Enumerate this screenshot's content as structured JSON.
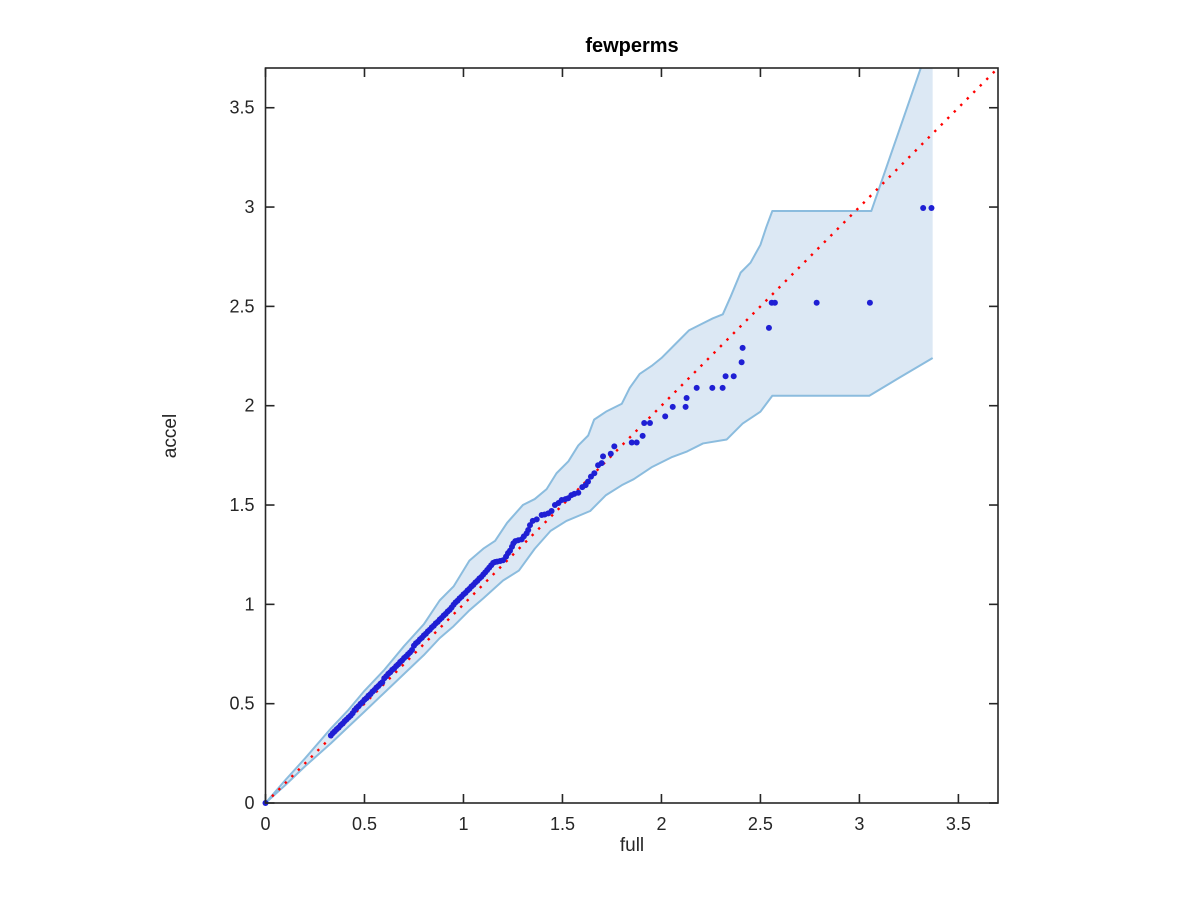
{
  "chart_data": {
    "type": "scatter",
    "title": "fewperms",
    "xlabel": "full",
    "ylabel": "accel",
    "xlim": [
      0,
      3.7
    ],
    "ylim": [
      0,
      3.7
    ],
    "grid": false,
    "legend": "none",
    "x_ticks": [
      0,
      0.5,
      1,
      1.5,
      2,
      2.5,
      3,
      3.5
    ],
    "x_tick_labels": [
      "0",
      "0.5",
      "1",
      "1.5",
      "2",
      "2.5",
      "3",
      "3.5"
    ],
    "y_ticks": [
      0,
      0.5,
      1,
      1.5,
      2,
      2.5,
      3,
      3.5
    ],
    "y_tick_labels": [
      "0",
      "0.5",
      "1",
      "1.5",
      "2",
      "2.5",
      "3",
      "3.5"
    ],
    "colors": {
      "band_fill": "#dce8f4",
      "band_edge": "#8bbcde",
      "point": "#1f1fd4",
      "reference_line": "#ff0000",
      "axis": "#262626"
    },
    "reference_line": {
      "style": "dotted",
      "from": [
        0,
        0
      ],
      "to": [
        3.7,
        3.7
      ]
    },
    "band": {
      "upper": [
        [
          0,
          0
        ],
        [
          0.1,
          0.115
        ],
        [
          0.2,
          0.225
        ],
        [
          0.33,
          0.375
        ],
        [
          0.42,
          0.47
        ],
        [
          0.5,
          0.565
        ],
        [
          0.6,
          0.67
        ],
        [
          0.7,
          0.79
        ],
        [
          0.8,
          0.9
        ],
        [
          0.88,
          1.02
        ],
        [
          0.95,
          1.09
        ],
        [
          1.03,
          1.22
        ],
        [
          1.1,
          1.28
        ],
        [
          1.16,
          1.32
        ],
        [
          1.22,
          1.41
        ],
        [
          1.3,
          1.5
        ],
        [
          1.36,
          1.53
        ],
        [
          1.42,
          1.58
        ],
        [
          1.47,
          1.66
        ],
        [
          1.53,
          1.72
        ],
        [
          1.58,
          1.8
        ],
        [
          1.63,
          1.85
        ],
        [
          1.66,
          1.93
        ],
        [
          1.72,
          1.97
        ],
        [
          1.8,
          2.01
        ],
        [
          1.84,
          2.09
        ],
        [
          1.89,
          2.16
        ],
        [
          1.95,
          2.2
        ],
        [
          2.0,
          2.24
        ],
        [
          2.07,
          2.31
        ],
        [
          2.14,
          2.38
        ],
        [
          2.2,
          2.41
        ],
        [
          2.26,
          2.44
        ],
        [
          2.31,
          2.46
        ],
        [
          2.35,
          2.55
        ],
        [
          2.4,
          2.67
        ],
        [
          2.45,
          2.72
        ],
        [
          2.5,
          2.81
        ],
        [
          2.53,
          2.9
        ],
        [
          2.56,
          2.98
        ],
        [
          3.06,
          2.98
        ],
        [
          3.31,
          3.7
        ],
        [
          3.37,
          3.7
        ]
      ],
      "lower": [
        [
          0,
          0
        ],
        [
          0.1,
          0.09
        ],
        [
          0.2,
          0.185
        ],
        [
          0.33,
          0.3
        ],
        [
          0.42,
          0.385
        ],
        [
          0.5,
          0.46
        ],
        [
          0.6,
          0.555
        ],
        [
          0.7,
          0.65
        ],
        [
          0.8,
          0.745
        ],
        [
          0.88,
          0.83
        ],
        [
          0.95,
          0.89
        ],
        [
          1.03,
          0.97
        ],
        [
          1.1,
          1.03
        ],
        [
          1.2,
          1.12
        ],
        [
          1.28,
          1.17
        ],
        [
          1.36,
          1.28
        ],
        [
          1.44,
          1.37
        ],
        [
          1.52,
          1.42
        ],
        [
          1.64,
          1.47
        ],
        [
          1.72,
          1.55
        ],
        [
          1.8,
          1.6
        ],
        [
          1.86,
          1.63
        ],
        [
          1.95,
          1.69
        ],
        [
          2.05,
          1.74
        ],
        [
          2.13,
          1.77
        ],
        [
          2.21,
          1.81
        ],
        [
          2.33,
          1.83
        ],
        [
          2.41,
          1.91
        ],
        [
          2.5,
          1.97
        ],
        [
          2.56,
          2.05
        ],
        [
          3.05,
          2.05
        ],
        [
          3.2,
          2.14
        ],
        [
          3.37,
          2.24
        ]
      ]
    },
    "points": [
      [
        0,
        0
      ],
      [
        0.33,
        0.34
      ],
      [
        0.34,
        0.352
      ],
      [
        0.35,
        0.361
      ],
      [
        0.36,
        0.372
      ],
      [
        0.37,
        0.38
      ],
      [
        0.38,
        0.392
      ],
      [
        0.39,
        0.4
      ],
      [
        0.4,
        0.412
      ],
      [
        0.41,
        0.421
      ],
      [
        0.42,
        0.431
      ],
      [
        0.43,
        0.44
      ],
      [
        0.44,
        0.452
      ],
      [
        0.45,
        0.467
      ],
      [
        0.46,
        0.478
      ],
      [
        0.47,
        0.487
      ],
      [
        0.48,
        0.499
      ],
      [
        0.49,
        0.508
      ],
      [
        0.5,
        0.52
      ],
      [
        0.51,
        0.528
      ],
      [
        0.52,
        0.54
      ],
      [
        0.53,
        0.548
      ],
      [
        0.54,
        0.56
      ],
      [
        0.55,
        0.569
      ],
      [
        0.56,
        0.581
      ],
      [
        0.57,
        0.589
      ],
      [
        0.58,
        0.6
      ],
      [
        0.59,
        0.608
      ],
      [
        0.6,
        0.628
      ],
      [
        0.61,
        0.638
      ],
      [
        0.62,
        0.65
      ],
      [
        0.63,
        0.658
      ],
      [
        0.64,
        0.67
      ],
      [
        0.65,
        0.678
      ],
      [
        0.66,
        0.689
      ],
      [
        0.67,
        0.698
      ],
      [
        0.68,
        0.71
      ],
      [
        0.69,
        0.718
      ],
      [
        0.7,
        0.73
      ],
      [
        0.71,
        0.738
      ],
      [
        0.72,
        0.749
      ],
      [
        0.73,
        0.758
      ],
      [
        0.74,
        0.77
      ],
      [
        0.75,
        0.792
      ],
      [
        0.76,
        0.804
      ],
      [
        0.77,
        0.812
      ],
      [
        0.78,
        0.824
      ],
      [
        0.79,
        0.832
      ],
      [
        0.8,
        0.844
      ],
      [
        0.81,
        0.852
      ],
      [
        0.82,
        0.864
      ],
      [
        0.83,
        0.872
      ],
      [
        0.84,
        0.884
      ],
      [
        0.85,
        0.892
      ],
      [
        0.86,
        0.904
      ],
      [
        0.87,
        0.912
      ],
      [
        0.88,
        0.924
      ],
      [
        0.89,
        0.932
      ],
      [
        0.9,
        0.944
      ],
      [
        0.91,
        0.952
      ],
      [
        0.92,
        0.964
      ],
      [
        0.93,
        0.972
      ],
      [
        0.94,
        0.984
      ],
      [
        0.95,
        0.998
      ],
      [
        0.96,
        1.01
      ],
      [
        0.97,
        1.018
      ],
      [
        0.98,
        1.03
      ],
      [
        0.99,
        1.038
      ],
      [
        1.0,
        1.05
      ],
      [
        1.01,
        1.058
      ],
      [
        1.02,
        1.07
      ],
      [
        1.03,
        1.078
      ],
      [
        1.04,
        1.09
      ],
      [
        1.05,
        1.098
      ],
      [
        1.06,
        1.11
      ],
      [
        1.07,
        1.118
      ],
      [
        1.08,
        1.13
      ],
      [
        1.09,
        1.138
      ],
      [
        1.1,
        1.15
      ],
      [
        1.11,
        1.161
      ],
      [
        1.12,
        1.173
      ],
      [
        1.13,
        1.185
      ],
      [
        1.14,
        1.197
      ],
      [
        1.15,
        1.209
      ],
      [
        1.16,
        1.213
      ],
      [
        1.17,
        1.215
      ],
      [
        1.185,
        1.218
      ],
      [
        1.2,
        1.222
      ],
      [
        1.215,
        1.24
      ],
      [
        1.225,
        1.258
      ],
      [
        1.235,
        1.27
      ],
      [
        1.245,
        1.29
      ],
      [
        1.252,
        1.307
      ],
      [
        1.262,
        1.318
      ],
      [
        1.277,
        1.323
      ],
      [
        1.294,
        1.327
      ],
      [
        1.305,
        1.342
      ],
      [
        1.319,
        1.357
      ],
      [
        1.327,
        1.374
      ],
      [
        1.336,
        1.399
      ],
      [
        1.35,
        1.42
      ],
      [
        1.37,
        1.428
      ],
      [
        1.395,
        1.45
      ],
      [
        1.41,
        1.452
      ],
      [
        1.428,
        1.458
      ],
      [
        1.445,
        1.47
      ],
      [
        1.462,
        1.5
      ],
      [
        1.48,
        1.51
      ],
      [
        1.496,
        1.525
      ],
      [
        1.515,
        1.53
      ],
      [
        1.529,
        1.534
      ],
      [
        1.545,
        1.55
      ],
      [
        1.56,
        1.556
      ],
      [
        1.58,
        1.562
      ],
      [
        1.6,
        1.59
      ],
      [
        1.617,
        1.6
      ],
      [
        1.629,
        1.618
      ],
      [
        1.644,
        1.643
      ],
      [
        1.661,
        1.66
      ],
      [
        1.68,
        1.7
      ],
      [
        1.698,
        1.711
      ],
      [
        1.705,
        1.745
      ],
      [
        1.744,
        1.758
      ],
      [
        1.762,
        1.795
      ],
      [
        1.85,
        1.815
      ],
      [
        1.875,
        1.815
      ],
      [
        1.905,
        1.848
      ],
      [
        1.913,
        1.913
      ],
      [
        1.942,
        1.913
      ],
      [
        2.019,
        1.946
      ],
      [
        2.057,
        1.994
      ],
      [
        2.122,
        1.994
      ],
      [
        2.127,
        2.039
      ],
      [
        2.178,
        2.09
      ],
      [
        2.257,
        2.09
      ],
      [
        2.309,
        2.09
      ],
      [
        2.324,
        2.148
      ],
      [
        2.365,
        2.148
      ],
      [
        2.405,
        2.219
      ],
      [
        2.41,
        2.291
      ],
      [
        2.543,
        2.392
      ],
      [
        2.557,
        2.518
      ],
      [
        2.573,
        2.518
      ],
      [
        2.784,
        2.518
      ],
      [
        3.053,
        2.518
      ],
      [
        3.322,
        2.995
      ],
      [
        3.364,
        2.995
      ]
    ]
  }
}
